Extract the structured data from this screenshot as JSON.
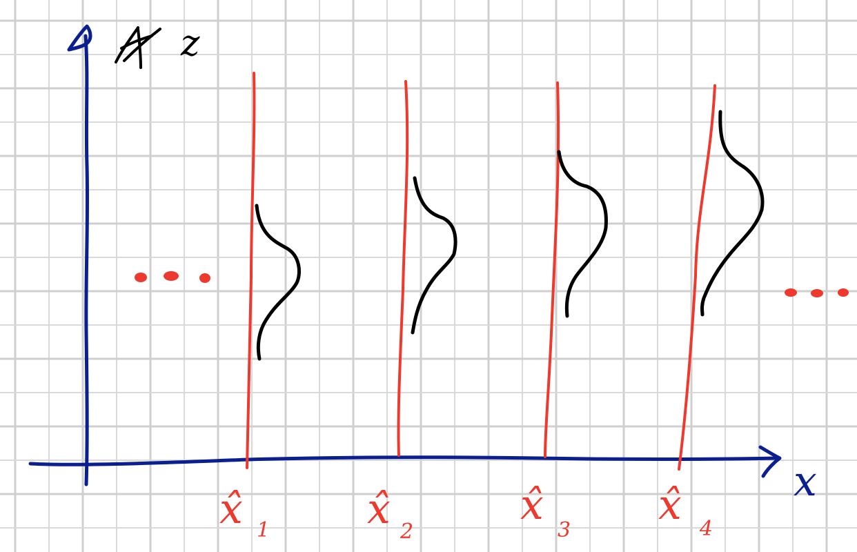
{
  "axes": {
    "y_label": "z",
    "x_label": "x"
  },
  "ellipsis_left": "...",
  "ellipsis_right": "...",
  "positions": [
    {
      "label": "x̂",
      "subscript": "1"
    },
    {
      "label": "x̂",
      "subscript": "2"
    },
    {
      "label": "x̂",
      "subscript": "3"
    },
    {
      "label": "x̂",
      "subscript": "4"
    }
  ],
  "colors": {
    "axis": "#0b1f8f",
    "position_lines": "#ee3a2e",
    "distributions": "#000000",
    "grid": "#d9d9d9"
  },
  "icons": {
    "strikethrough_mark": "scribble"
  }
}
